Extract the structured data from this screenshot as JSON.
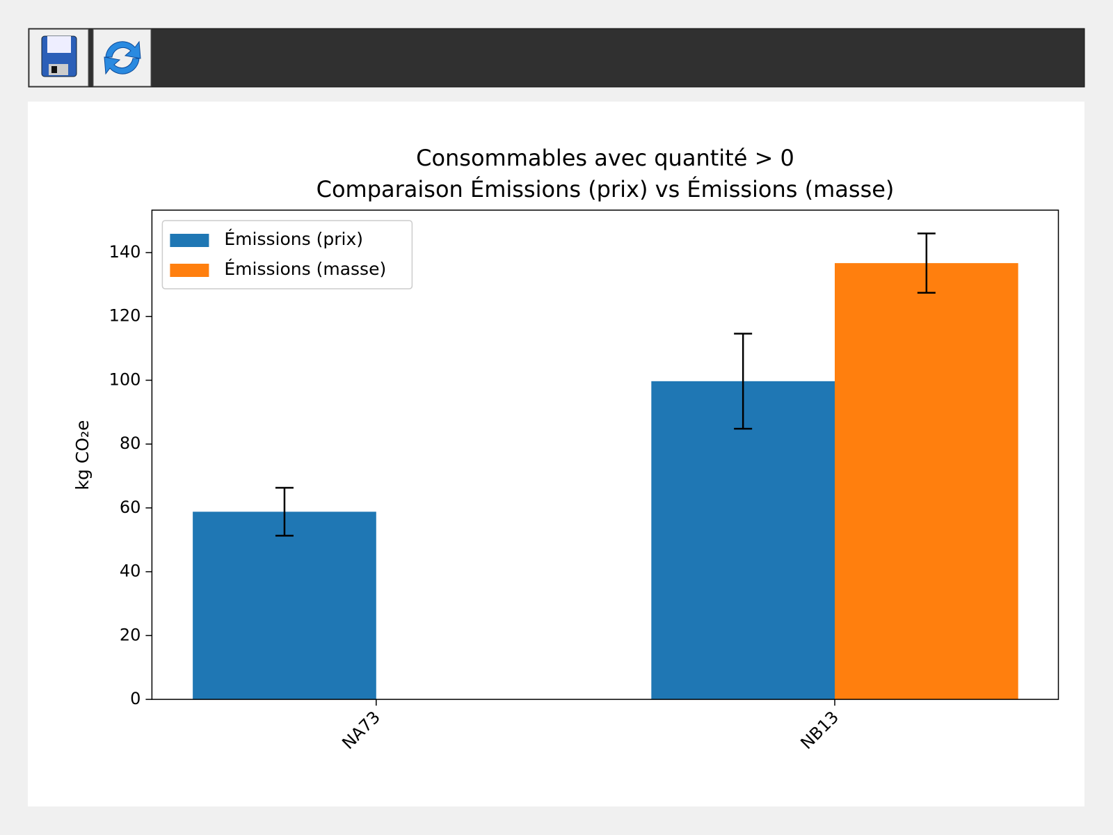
{
  "chart_data": {
    "type": "bar",
    "title": "Consommables avec quantité > 0\nComparaison Émissions (prix) vs Émissions (masse)",
    "y_label": "kg CO₂e",
    "categories": [
      "NA73",
      "NB13"
    ],
    "series": [
      {
        "name": "Émissions (prix)",
        "color": "#1f77b4",
        "values": [
          58.8,
          99.7
        ],
        "errors": [
          7.5,
          14.9
        ]
      },
      {
        "name": "Émissions (masse)",
        "color": "#ff7f0e",
        "values": [
          null,
          136.7
        ],
        "errors": [
          null,
          9.3
        ]
      }
    ],
    "ylim": [
      0,
      153.3
    ],
    "yticks": [
      0,
      20,
      40,
      60,
      80,
      100,
      120,
      140
    ],
    "legend": "upper left",
    "grid": false
  }
}
